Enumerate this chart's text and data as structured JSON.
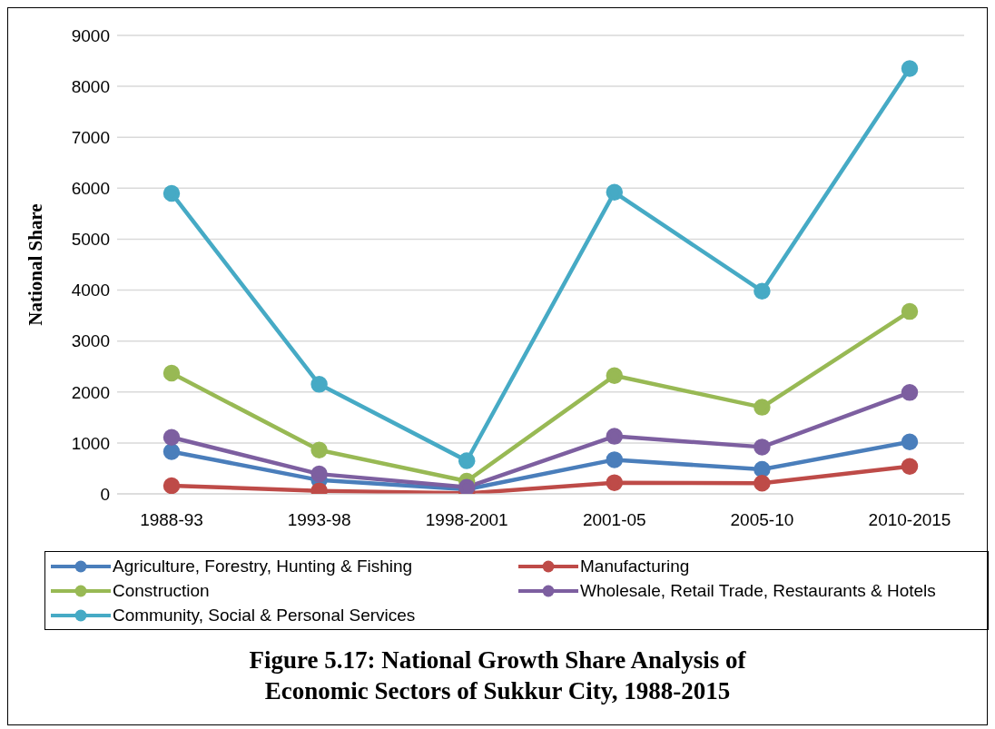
{
  "chart_data": {
    "type": "line",
    "title": "Figure 5.17: National Growth Share Analysis of Economic Sectors of Sukkur City, 1988-2015",
    "ylabel": "National Share",
    "categories": [
      "1988-93",
      "1993-98",
      "1998-2001",
      "2001-05",
      "2005-10",
      "2010-2015"
    ],
    "series": [
      {
        "name": "Agriculture, Forestry, Hunting & Fishing",
        "color": "#4a7ebb",
        "values": [
          830,
          270,
          90,
          670,
          480,
          1020
        ]
      },
      {
        "name": "Manufacturing",
        "color": "#be4b48",
        "values": [
          160,
          60,
          10,
          220,
          210,
          540
        ]
      },
      {
        "name": "Construction",
        "color": "#98b954",
        "values": [
          2370,
          860,
          250,
          2320,
          1700,
          3580
        ]
      },
      {
        "name": "Wholesale, Retail Trade, Restaurants & Hotels",
        "color": "#7d5fa0",
        "values": [
          1110,
          390,
          130,
          1130,
          920,
          1990
        ]
      },
      {
        "name": "Community, Social & Personal Services",
        "color": "#46aac5",
        "values": [
          5900,
          2150,
          650,
          5920,
          3980,
          8350
        ]
      }
    ],
    "ylim": [
      0,
      9000
    ],
    "yticks": [
      0,
      1000,
      2000,
      3000,
      4000,
      5000,
      6000,
      7000,
      8000,
      9000
    ],
    "grid": "y",
    "legend": "bottom",
    "marker": "circle",
    "line_style": "solid"
  }
}
